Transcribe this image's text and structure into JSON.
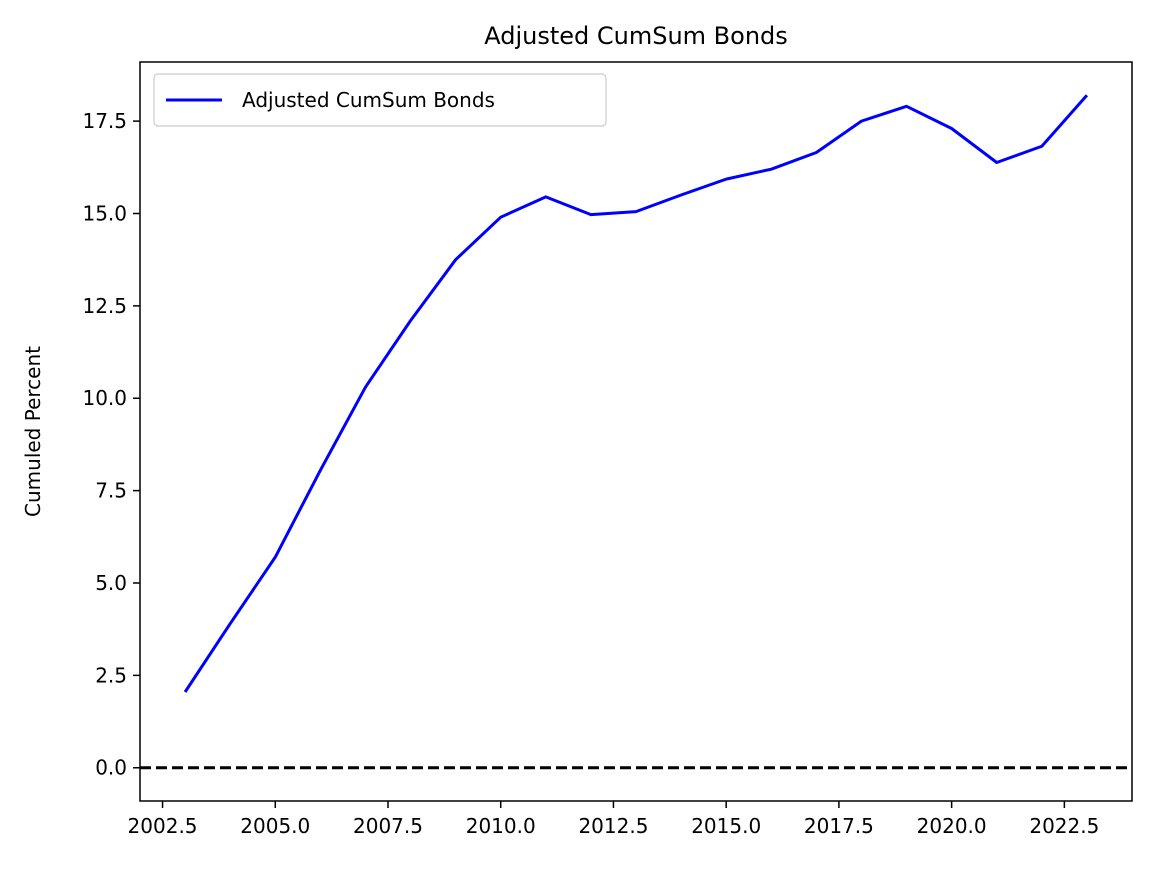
{
  "chart_data": {
    "type": "line",
    "title": "Adjusted CumSum Bonds",
    "xlabel": "",
    "ylabel": "Cumuled Percent",
    "xlim": [
      2002.0,
      2024.0
    ],
    "ylim": [
      -0.9,
      19.1
    ],
    "x_ticks": [
      2002.5,
      2005.0,
      2007.5,
      2010.0,
      2012.5,
      2015.0,
      2017.5,
      2020.0,
      2022.5
    ],
    "x_tick_labels": [
      "2002.5",
      "2005.0",
      "2007.5",
      "2010.0",
      "2012.5",
      "2015.0",
      "2017.5",
      "2020.0",
      "2022.5"
    ],
    "y_ticks": [
      0.0,
      2.5,
      5.0,
      7.5,
      10.0,
      12.5,
      15.0,
      17.5
    ],
    "y_tick_labels": [
      "0.0",
      "2.5",
      "5.0",
      "7.5",
      "10.0",
      "12.5",
      "15.0",
      "17.5"
    ],
    "grid": false,
    "legend_placement": "top-left",
    "series": [
      {
        "name": "Adjusted CumSum Bonds",
        "color": "#0000ff",
        "style": "solid",
        "x": [
          2003,
          2004,
          2005,
          2006,
          2007,
          2008,
          2009,
          2010,
          2011,
          2012,
          2013,
          2014,
          2015,
          2016,
          2017,
          2018,
          2019,
          2020,
          2021,
          2022,
          2023
        ],
        "y": [
          2.05,
          3.9,
          5.7,
          8.05,
          10.3,
          12.1,
          13.75,
          14.9,
          15.45,
          14.97,
          15.05,
          15.5,
          15.93,
          16.2,
          16.65,
          17.5,
          17.9,
          17.3,
          16.38,
          16.82,
          18.2
        ]
      }
    ],
    "reference_lines": [
      {
        "orientation": "horizontal",
        "y": 0.0,
        "color": "#000000",
        "style": "dashed"
      }
    ]
  }
}
